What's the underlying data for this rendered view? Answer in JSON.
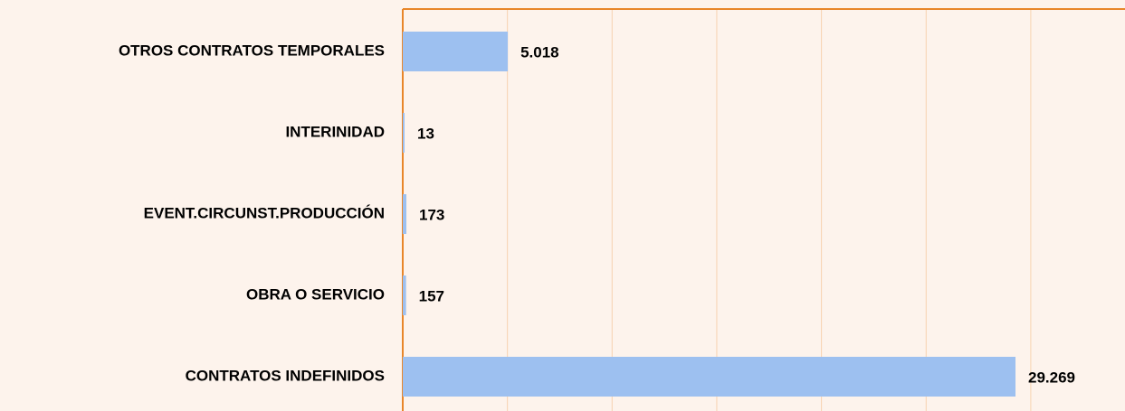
{
  "chart_data": {
    "type": "barh",
    "categories": [
      "OTROS CONTRATOS TEMPORALES",
      "INTERINIDAD",
      "EVENT.CIRCUNST.PRODUCCIÓN",
      "OBRA O SERVICIO",
      "CONTRATOS INDEFINIDOS"
    ],
    "values": [
      5018,
      13,
      173,
      157,
      29269
    ],
    "value_labels": [
      "5.018",
      "13",
      "173",
      "157",
      "29.269"
    ],
    "color": "#9dc0f0",
    "xlim": [
      0,
      34500
    ],
    "xticks": [
      0,
      5000,
      10000,
      15000,
      20000,
      25000,
      30000
    ],
    "grid": true
  }
}
